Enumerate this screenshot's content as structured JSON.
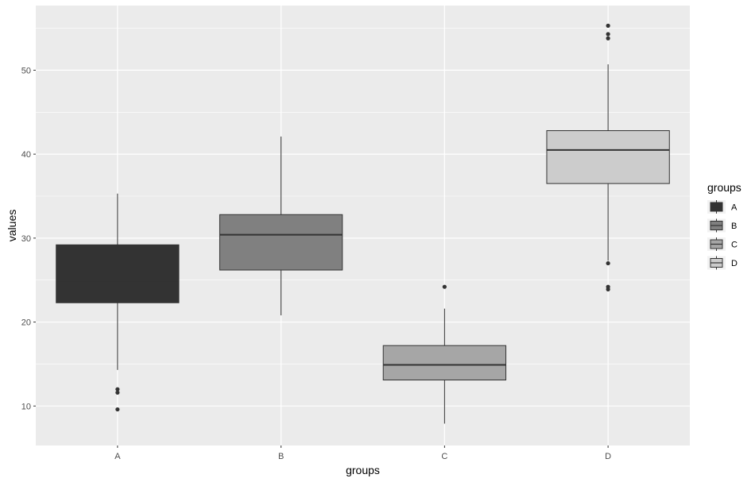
{
  "chart_data": {
    "type": "box",
    "xlabel": "groups",
    "ylabel": "values",
    "ylim": [
      5.3,
      57.7
    ],
    "yticks": [
      10,
      20,
      30,
      40,
      50
    ],
    "ytick_labels": [
      "10",
      "20",
      "30",
      "40",
      "50"
    ],
    "categories": [
      "A",
      "B",
      "C",
      "D"
    ],
    "grid": true,
    "legend": {
      "title": "groups",
      "position": "right",
      "entries": [
        "A",
        "B",
        "C",
        "D"
      ]
    },
    "colors": {
      "panel": "#ebebeb",
      "grid": "#ffffff",
      "A": "#333333",
      "B": "#808080",
      "C": "#a6a6a6",
      "D": "#cccccc",
      "line": "#333333"
    },
    "boxes": [
      {
        "group": "A",
        "whisker_low": 14.3,
        "q1": 22.3,
        "median": 24.9,
        "q3": 29.2,
        "whisker_high": 35.3,
        "outliers": [
          12.0,
          11.6,
          9.6
        ]
      },
      {
        "group": "B",
        "whisker_low": 20.8,
        "q1": 26.2,
        "median": 30.4,
        "q3": 32.8,
        "whisker_high": 42.1,
        "outliers": []
      },
      {
        "group": "C",
        "whisker_low": 7.9,
        "q1": 13.1,
        "median": 14.9,
        "q3": 17.2,
        "whisker_high": 21.6,
        "outliers": [
          24.2
        ]
      },
      {
        "group": "D",
        "whisker_low": 27.3,
        "q1": 36.5,
        "median": 40.5,
        "q3": 42.8,
        "whisker_high": 50.7,
        "outliers": [
          27.0,
          24.2,
          23.9,
          53.8,
          54.3,
          55.3
        ]
      }
    ]
  }
}
